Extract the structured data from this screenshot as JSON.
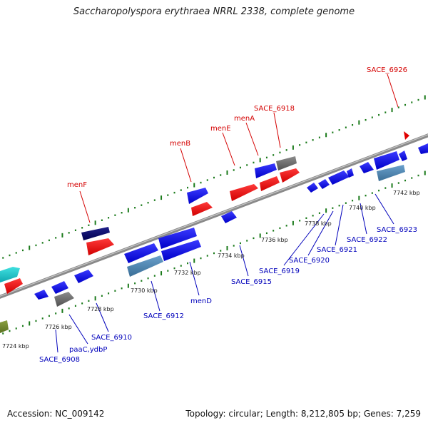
{
  "title": "Saccharopolyspora erythraea NRRL 2338, complete genome",
  "footer": {
    "accession": "Accession: NC_009142",
    "summary": "Topology: circular; Length: 8,212,805 bp; Genes: 7,259"
  },
  "colors": {
    "forward_gene": "#1515e8",
    "reverse_gene": "#e81515",
    "pseudo_gene": "#707070",
    "rna_gene": "#4a86b4",
    "label_forward": "#d40000",
    "label_reverse": "#0000bb",
    "backbone": "#8a8a8a",
    "tick": "#1a7a1a"
  },
  "scale_labels": [
    "7724 kbp",
    "7726 kbp",
    "7728 kbp",
    "7730 kbp",
    "7732 kbp",
    "7734 kbp",
    "7736 kbp",
    "7738 kbp",
    "7740 kbp",
    "7742 kbp"
  ],
  "forward_gene_labels": [
    "menF",
    "menB",
    "menE",
    "menA",
    "SACE_6918",
    "SACE_6926"
  ],
  "reverse_gene_labels": [
    "SACE_6908",
    "paaC,ydbP",
    "SACE_6910",
    "SACE_6912",
    "menD",
    "SACE_6915",
    "SACE_6919",
    "SACE_6920",
    "SACE_6921",
    "SACE_6922",
    "SACE_6923"
  ]
}
